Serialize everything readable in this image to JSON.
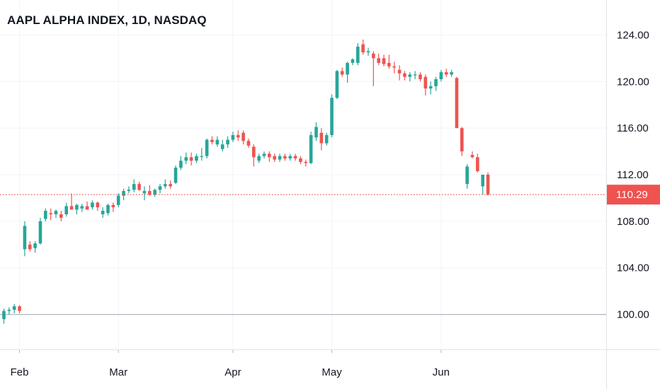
{
  "chart_data": {
    "type": "candlestick",
    "title": "AAPL ALPHA INDEX, 1D, NASDAQ",
    "colors": {
      "up": "#26a69a",
      "down": "#ef5350",
      "grid": "#f0f3fa",
      "baseline": "#b2b5be",
      "last_price": "#ef5350"
    },
    "y_axis": {
      "range": [
        97.0,
        127.0
      ],
      "ticks": [
        "100.00",
        "104.00",
        "108.00",
        "112.00",
        "116.00",
        "120.00",
        "124.00"
      ]
    },
    "x_axis": {
      "labels": [
        {
          "label": "Feb",
          "index": 3
        },
        {
          "label": "Mar",
          "index": 22
        },
        {
          "label": "Apr",
          "index": 44
        },
        {
          "label": "May",
          "index": 63
        },
        {
          "label": "Jun",
          "index": 84
        }
      ]
    },
    "baseline": 100.0,
    "last_price": {
      "value": 110.29,
      "label": "110.29"
    },
    "candles": [
      [
        99.6,
        100.5,
        99.2,
        100.3
      ],
      [
        100.3,
        100.6,
        100.0,
        100.4
      ],
      [
        100.4,
        100.9,
        100.1,
        100.7
      ],
      [
        100.7,
        100.8,
        100.1,
        100.3
      ],
      [
        105.6,
        108.0,
        105.0,
        107.6
      ],
      [
        106.0,
        106.3,
        105.4,
        105.6
      ],
      [
        105.7,
        106.3,
        105.3,
        106.1
      ],
      [
        106.1,
        108.3,
        106.0,
        108.0
      ],
      [
        108.2,
        109.1,
        108.0,
        108.9
      ],
      [
        108.7,
        109.1,
        108.1,
        108.6
      ],
      [
        108.6,
        109.0,
        108.3,
        108.9
      ],
      [
        108.6,
        108.9,
        108.0,
        108.3
      ],
      [
        108.6,
        109.6,
        108.4,
        109.3
      ],
      [
        109.3,
        110.4,
        109.0,
        109.0
      ],
      [
        109.0,
        109.5,
        108.6,
        109.4
      ],
      [
        109.1,
        109.5,
        108.8,
        109.3
      ],
      [
        109.3,
        109.7,
        109.0,
        109.0
      ],
      [
        109.2,
        109.8,
        109.0,
        109.6
      ],
      [
        109.6,
        109.7,
        108.9,
        109.2
      ],
      [
        108.6,
        109.2,
        108.3,
        108.9
      ],
      [
        108.7,
        109.5,
        108.5,
        109.4
      ],
      [
        109.4,
        109.6,
        108.8,
        109.2
      ],
      [
        109.4,
        110.4,
        109.2,
        110.2
      ],
      [
        110.2,
        110.8,
        109.8,
        110.6
      ],
      [
        110.6,
        111.0,
        110.4,
        110.7
      ],
      [
        110.7,
        111.6,
        110.5,
        111.2
      ],
      [
        111.2,
        111.4,
        110.6,
        110.7
      ],
      [
        110.4,
        111.0,
        109.8,
        110.6
      ],
      [
        110.6,
        111.1,
        110.2,
        110.3
      ],
      [
        110.3,
        110.8,
        110.1,
        110.7
      ],
      [
        110.7,
        111.2,
        110.4,
        111.0
      ],
      [
        111.0,
        111.6,
        110.8,
        111.2
      ],
      [
        111.2,
        111.5,
        110.8,
        111.0
      ],
      [
        111.3,
        112.8,
        111.2,
        112.6
      ],
      [
        112.6,
        113.6,
        112.4,
        113.2
      ],
      [
        113.2,
        113.9,
        112.9,
        113.5
      ],
      [
        113.5,
        113.9,
        112.8,
        113.2
      ],
      [
        113.2,
        113.8,
        113.0,
        113.6
      ],
      [
        113.6,
        114.3,
        113.2,
        113.6
      ],
      [
        113.6,
        115.1,
        113.4,
        115.0
      ],
      [
        115.0,
        115.3,
        114.6,
        114.8
      ],
      [
        114.6,
        115.3,
        114.4,
        115.0
      ],
      [
        114.2,
        115.0,
        114.0,
        114.6
      ],
      [
        114.6,
        115.3,
        114.3,
        115.0
      ],
      [
        115.0,
        115.7,
        114.8,
        115.4
      ],
      [
        115.4,
        115.8,
        114.9,
        115.2
      ],
      [
        115.6,
        115.8,
        114.6,
        114.9
      ],
      [
        114.9,
        115.1,
        114.3,
        114.5
      ],
      [
        114.4,
        114.6,
        112.7,
        113.5
      ],
      [
        113.2,
        113.8,
        113.0,
        113.6
      ],
      [
        113.6,
        114.0,
        113.4,
        113.8
      ],
      [
        113.8,
        114.0,
        113.1,
        113.5
      ],
      [
        113.6,
        113.8,
        113.1,
        113.3
      ],
      [
        113.3,
        113.8,
        113.1,
        113.6
      ],
      [
        113.6,
        113.8,
        113.2,
        113.4
      ],
      [
        113.4,
        113.8,
        113.2,
        113.6
      ],
      [
        113.6,
        113.8,
        113.2,
        113.4
      ],
      [
        113.4,
        113.6,
        112.9,
        113.1
      ],
      [
        113.1,
        113.3,
        112.7,
        113.0
      ],
      [
        113.0,
        115.7,
        112.9,
        115.4
      ],
      [
        115.2,
        116.5,
        114.9,
        116.1
      ],
      [
        115.6,
        116.0,
        114.1,
        114.7
      ],
      [
        114.7,
        115.6,
        114.5,
        115.4
      ],
      [
        115.4,
        118.9,
        115.2,
        118.6
      ],
      [
        118.6,
        121.0,
        118.5,
        120.9
      ],
      [
        120.9,
        121.2,
        120.4,
        120.6
      ],
      [
        120.6,
        121.7,
        119.9,
        121.6
      ],
      [
        121.6,
        122.0,
        121.4,
        121.9
      ],
      [
        121.6,
        123.3,
        121.4,
        123.0
      ],
      [
        123.2,
        123.6,
        122.3,
        122.5
      ],
      [
        122.5,
        122.9,
        122.2,
        122.6
      ],
      [
        122.4,
        122.6,
        119.6,
        122.0
      ],
      [
        122.0,
        122.4,
        121.4,
        121.6
      ],
      [
        122.0,
        122.3,
        121.3,
        121.5
      ],
      [
        121.6,
        122.3,
        121.1,
        121.3
      ],
      [
        121.3,
        121.7,
        120.7,
        121.2
      ],
      [
        121.0,
        121.4,
        120.1,
        120.7
      ],
      [
        120.7,
        120.9,
        120.1,
        120.4
      ],
      [
        120.4,
        120.8,
        120.0,
        120.6
      ],
      [
        120.6,
        120.9,
        120.2,
        120.6
      ],
      [
        120.6,
        120.8,
        120.0,
        120.2
      ],
      [
        120.4,
        120.6,
        118.8,
        119.4
      ],
      [
        119.4,
        120.0,
        118.9,
        119.6
      ],
      [
        119.6,
        120.4,
        119.2,
        120.2
      ],
      [
        120.2,
        121.0,
        120.0,
        120.8
      ],
      [
        120.8,
        121.1,
        120.4,
        120.6
      ],
      [
        120.6,
        121.0,
        120.4,
        120.8
      ],
      [
        120.3,
        120.4,
        116.0,
        116.0
      ],
      [
        116.0,
        116.1,
        113.6,
        114.0
      ],
      [
        111.2,
        112.9,
        110.8,
        112.7
      ],
      [
        113.7,
        114.0,
        113.4,
        113.5
      ],
      [
        113.5,
        113.8,
        112.2,
        112.3
      ],
      [
        111.0,
        112.0,
        110.3,
        112.0
      ],
      [
        112.0,
        112.2,
        110.2,
        110.29
      ]
    ]
  }
}
